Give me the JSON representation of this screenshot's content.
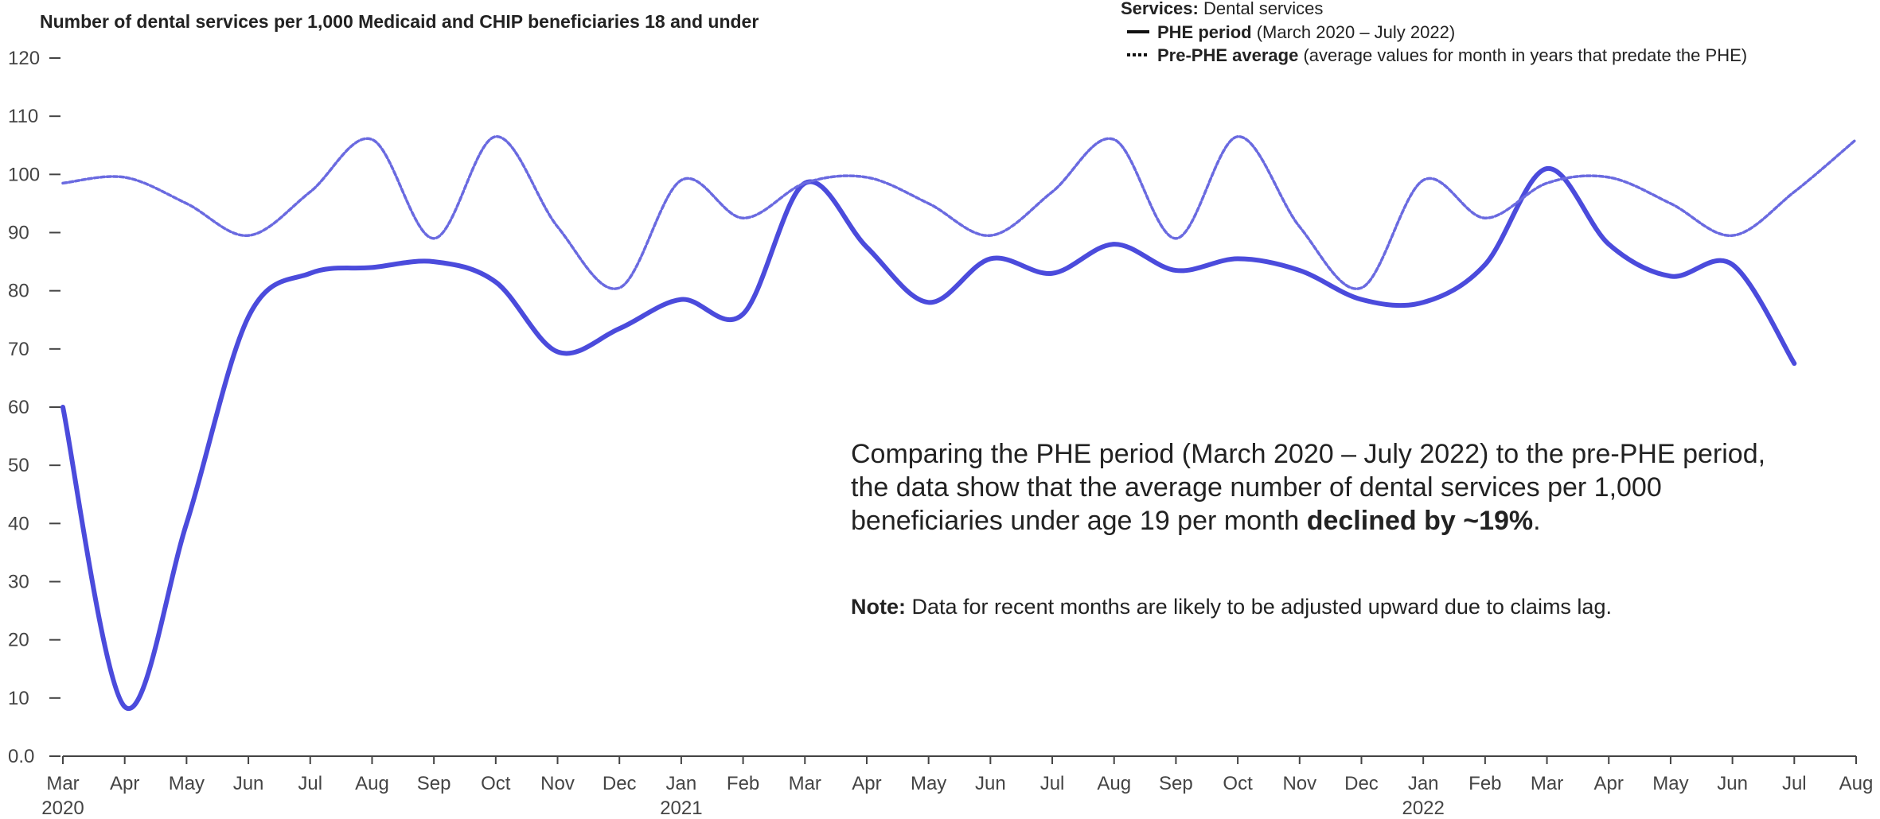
{
  "chart_data": {
    "type": "line",
    "title": "Number of dental services per 1,000 Medicaid and CHIP beneficiaries 18 and under",
    "legend_title": "Services:",
    "legend_subtitle": "Dental services",
    "categories": [
      "Mar",
      "Apr",
      "May",
      "Jun",
      "Jul",
      "Aug",
      "Sep",
      "Oct",
      "Nov",
      "Dec",
      "Jan",
      "Feb",
      "Mar",
      "Apr",
      "May",
      "Jun",
      "Jul",
      "Aug",
      "Sep",
      "Oct",
      "Nov",
      "Dec",
      "Jan",
      "Feb",
      "Mar",
      "Apr",
      "May",
      "Jun",
      "Jul",
      "Aug"
    ],
    "year_labels": [
      "2020",
      null,
      null,
      null,
      null,
      null,
      null,
      null,
      null,
      null,
      "2021",
      null,
      null,
      null,
      null,
      null,
      null,
      null,
      null,
      null,
      null,
      null,
      "2022",
      null,
      null,
      null,
      null,
      null,
      null,
      null
    ],
    "series": [
      {
        "name": "PHE period",
        "description": "(March 2020 – July 2022)",
        "color": "#4b4bdc",
        "style": "solid",
        "values": [
          60,
          8.5,
          40,
          75.5,
          83,
          84,
          85,
          81.5,
          69.5,
          73.5,
          78.5,
          76,
          98.5,
          87.5,
          78,
          85.5,
          83,
          88,
          83.5,
          85.5,
          83.5,
          78.5,
          78,
          84.5,
          101,
          88,
          82.5,
          84.5,
          67.5,
          null
        ]
      },
      {
        "name": "Pre-PHE average",
        "description": "(average values for month in years that predate the PHE)",
        "color": "#6a6ae0",
        "style": "dotted",
        "values": [
          98.5,
          99.5,
          95,
          89.5,
          97,
          106,
          89,
          106.5,
          91,
          80.5,
          99,
          92.5,
          98.5,
          99.5,
          95,
          89.5,
          97,
          106,
          89,
          106.5,
          91,
          80.5,
          99,
          92.5,
          98.5,
          99.5,
          95,
          89.5,
          97,
          106
        ]
      }
    ],
    "ylim": [
      0,
      120
    ],
    "yticks": [
      {
        "value": 0,
        "label": "0.0"
      },
      10,
      20,
      30,
      40,
      50,
      60,
      70,
      80,
      90,
      100,
      110,
      120
    ],
    "annotations": [
      [
        {
          "text": "Comparing the PHE period (March 2020 – July 2022) to the pre-PHE period,",
          "bold": false
        }
      ],
      [
        {
          "text": "the data show that the average number of dental services per 1,000",
          "bold": false
        }
      ],
      [
        {
          "text": "beneficiaries under age 19 per month ",
          "bold": false
        },
        {
          "text": "declined by ~19%",
          "bold": true
        },
        {
          "text": ".",
          "bold": false
        }
      ]
    ],
    "note": [
      {
        "text": "Note:",
        "bold": true
      },
      {
        "text": " Data for recent months are likely to be adjusted upward due to claims lag.",
        "bold": false
      }
    ]
  }
}
